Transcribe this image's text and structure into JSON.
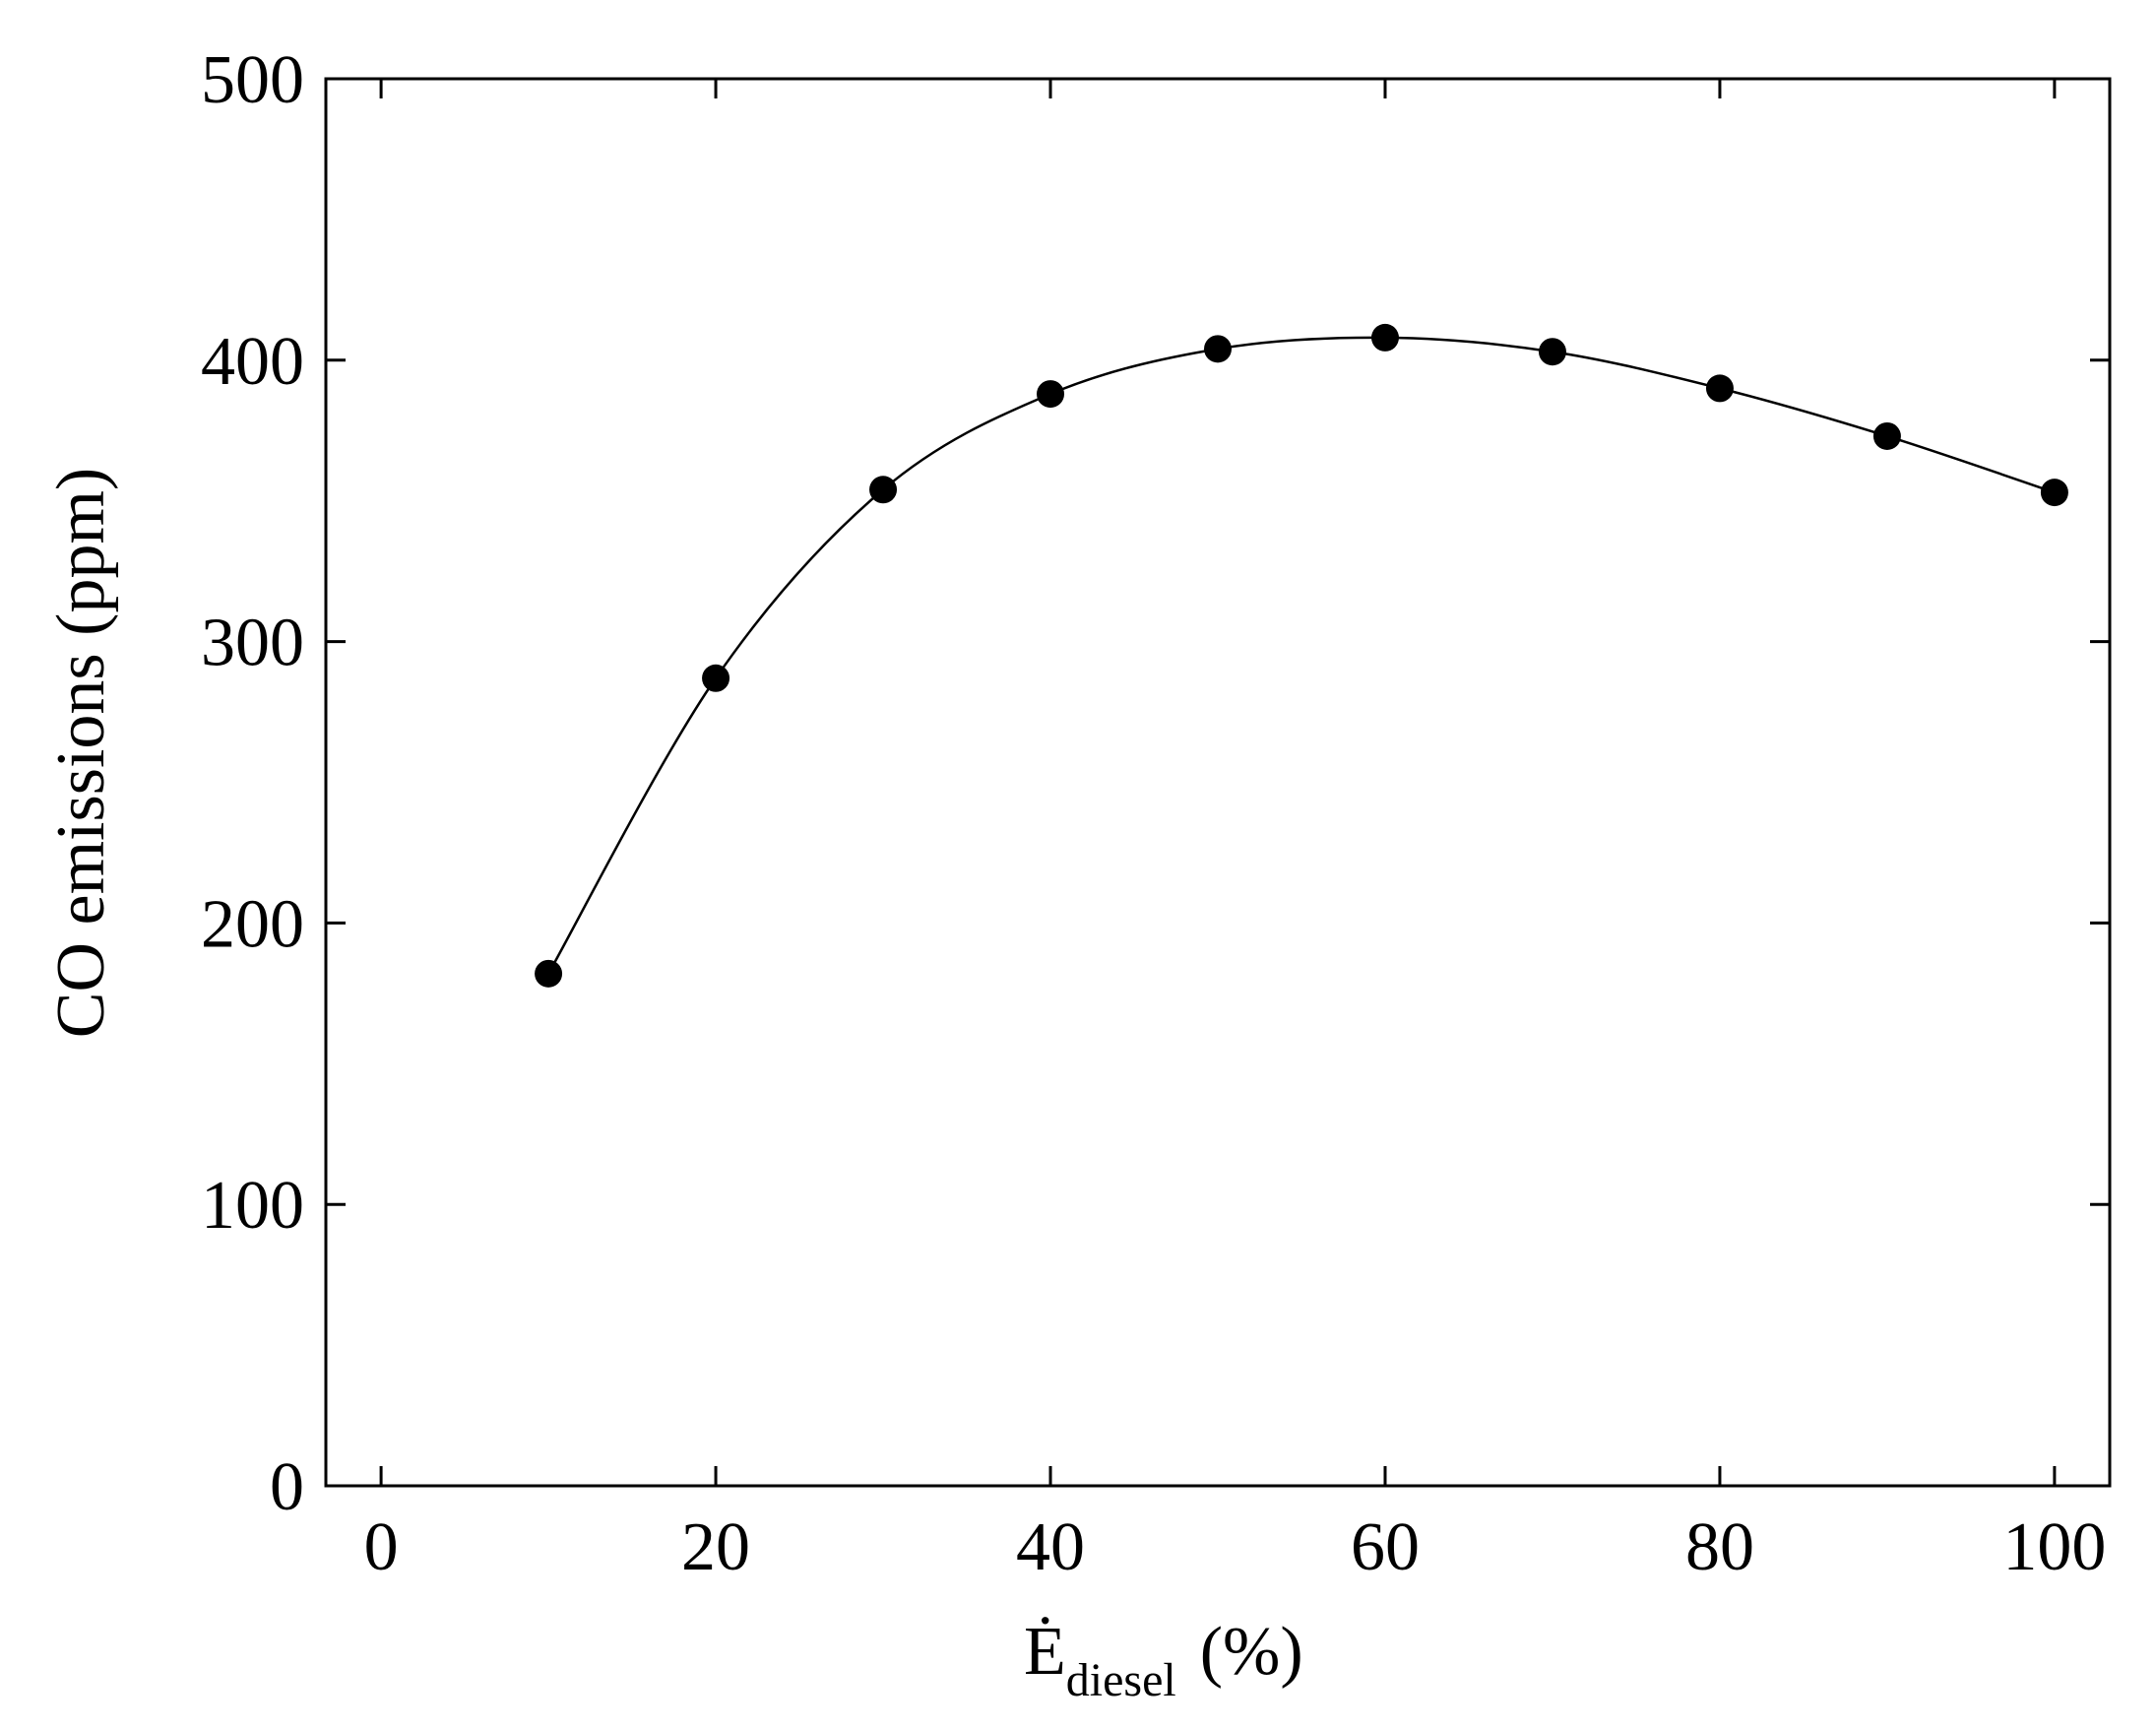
{
  "chart_data": {
    "type": "line",
    "title": "",
    "xlabel": {
      "main": "Ė",
      "sub": "diesel",
      "unit": "(%)"
    },
    "ylabel": "CO emissions (ppm)",
    "xlim": [
      -3.3,
      103.3
    ],
    "ylim": [
      0,
      500
    ],
    "x_ticks": [
      0,
      20,
      40,
      60,
      80,
      100
    ],
    "y_ticks": [
      0,
      100,
      200,
      300,
      400,
      500
    ],
    "x_tick_labels": [
      "0",
      "20",
      "40",
      "60",
      "80",
      "100"
    ],
    "y_tick_labels": [
      "0",
      "100",
      "200",
      "300",
      "400",
      "500"
    ],
    "grid": false,
    "legend": "none",
    "series": [
      {
        "marker": "filled-circle",
        "line": "smooth",
        "color": "#000000",
        "x": [
          10,
          20,
          30,
          40,
          50,
          60,
          70,
          80,
          90,
          100
        ],
        "y": [
          182,
          287,
          354,
          388,
          404,
          408,
          403,
          390,
          373,
          353
        ]
      }
    ]
  }
}
